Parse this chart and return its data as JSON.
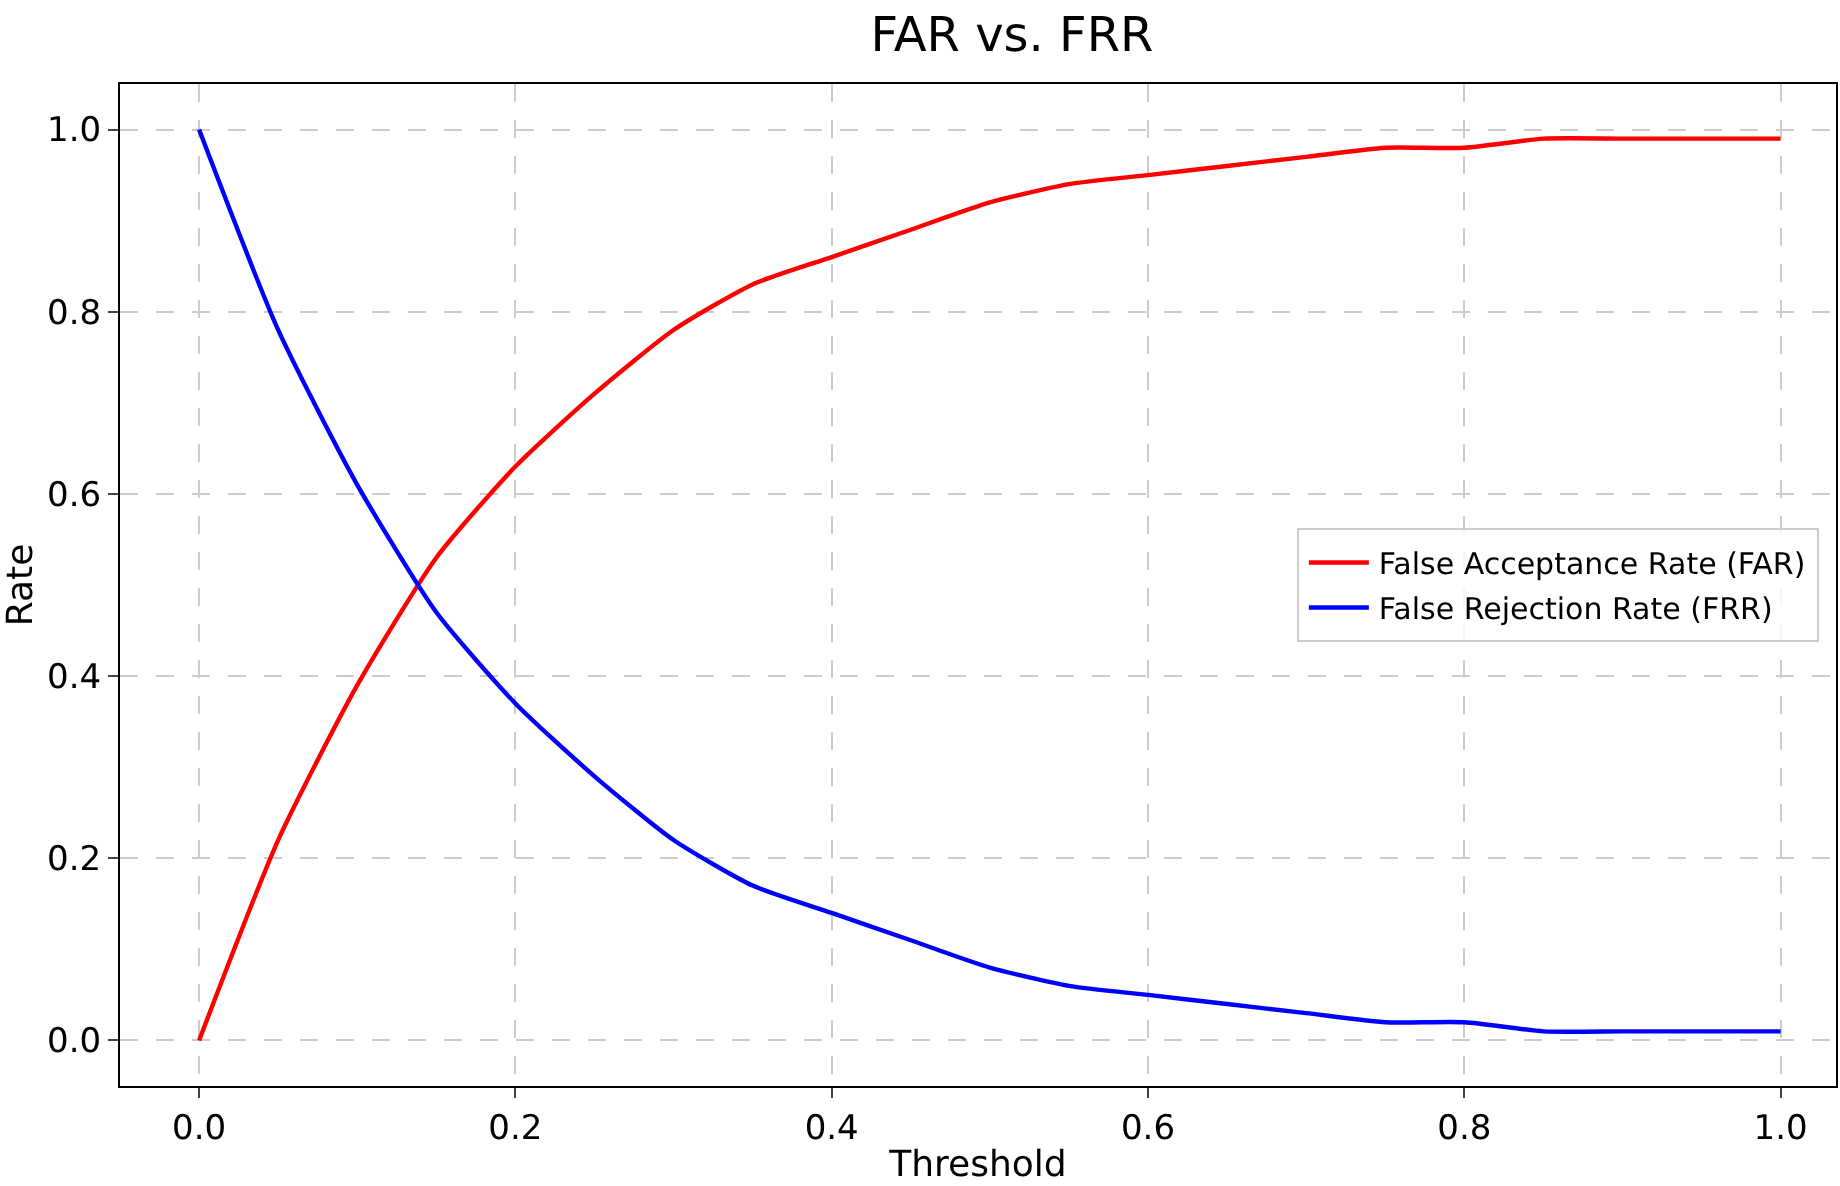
{
  "chart_data": {
    "type": "line",
    "title": "FAR vs. FRR",
    "xlabel": "Threshold",
    "ylabel": "Rate",
    "x": [
      0,
      0.05,
      0.1,
      0.15,
      0.2,
      0.25,
      0.3,
      0.35,
      0.4,
      0.45,
      0.5,
      0.55,
      0.6,
      0.65,
      0.7,
      0.75,
      0.8,
      0.85,
      0.9,
      0.95,
      1.0
    ],
    "series": [
      {
        "name": "False Acceptance Rate (FAR)",
        "color": "#ff0000",
        "values": [
          0,
          0.22,
          0.39,
          0.53,
          0.63,
          0.71,
          0.78,
          0.83,
          0.86,
          0.89,
          0.92,
          0.94,
          0.95,
          0.96,
          0.97,
          0.98,
          0.98,
          0.99,
          0.99,
          0.99,
          0.99
        ]
      },
      {
        "name": "False Rejection Rate (FRR)",
        "color": "#0000ff",
        "values": [
          1,
          0.78,
          0.61,
          0.47,
          0.37,
          0.29,
          0.22,
          0.17,
          0.14,
          0.11,
          0.08,
          0.06,
          0.05,
          0.04,
          0.03,
          0.02,
          0.02,
          0.01,
          0.01,
          0.01,
          0.01
        ]
      }
    ],
    "xlim": [
      -0.05,
      1.035
    ],
    "ylim": [
      -0.05,
      1.05
    ],
    "xticks": [
      {
        "value": 0,
        "label": "0.0"
      },
      0.2,
      0.4,
      0.6,
      0.8,
      {
        "value": 1,
        "label": "1.0"
      }
    ],
    "yticks": [
      {
        "value": 0,
        "label": "0.0"
      },
      0.2,
      0.4,
      0.6,
      0.8,
      {
        "value": 1,
        "label": "1.0"
      }
    ],
    "grid": true,
    "legend": "center right",
    "line_style": "solid",
    "marker": "none"
  }
}
